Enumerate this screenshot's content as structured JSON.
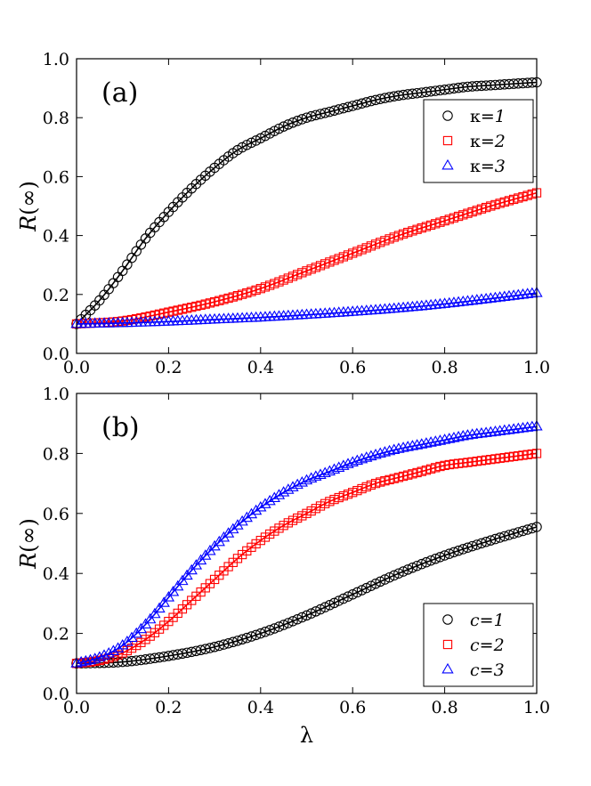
{
  "chart_data": [
    {
      "type": "line",
      "panel_label": "(a)",
      "xlabel": "",
      "ylabel": "R(∞)",
      "xlim": [
        0,
        1
      ],
      "ylim": [
        0,
        1
      ],
      "xticks": [
        "0.0",
        "0.2",
        "0.4",
        "0.6",
        "0.8",
        "1.0"
      ],
      "yticks": [
        "0.0",
        "0.2",
        "0.4",
        "0.6",
        "0.8",
        "1.0"
      ],
      "legend": "upper-right",
      "series": [
        {
          "name": "κ=1",
          "prefix": "κ=",
          "num": "1",
          "marker": "circle",
          "color": "#000000",
          "points": [
            [
              0,
              0.1
            ],
            [
              0.05,
              0.18
            ],
            [
              0.1,
              0.28
            ],
            [
              0.15,
              0.39
            ],
            [
              0.2,
              0.48
            ],
            [
              0.25,
              0.56
            ],
            [
              0.3,
              0.63
            ],
            [
              0.35,
              0.69
            ],
            [
              0.4,
              0.73
            ],
            [
              0.45,
              0.77
            ],
            [
              0.5,
              0.8
            ],
            [
              0.55,
              0.82
            ],
            [
              0.6,
              0.84
            ],
            [
              0.65,
              0.86
            ],
            [
              0.7,
              0.875
            ],
            [
              0.75,
              0.885
            ],
            [
              0.8,
              0.895
            ],
            [
              0.85,
              0.905
            ],
            [
              0.9,
              0.91
            ],
            [
              0.95,
              0.915
            ],
            [
              1.0,
              0.92
            ]
          ]
        },
        {
          "name": "κ=2",
          "prefix": "κ=",
          "num": "2",
          "marker": "square",
          "color": "#ff0000",
          "points": [
            [
              0,
              0.1
            ],
            [
              0.1,
              0.11
            ],
            [
              0.2,
              0.14
            ],
            [
              0.3,
              0.175
            ],
            [
              0.4,
              0.22
            ],
            [
              0.5,
              0.28
            ],
            [
              0.6,
              0.34
            ],
            [
              0.7,
              0.4
            ],
            [
              0.8,
              0.45
            ],
            [
              0.9,
              0.5
            ],
            [
              1.0,
              0.545
            ]
          ]
        },
        {
          "name": "κ=3",
          "prefix": "κ=",
          "num": "3",
          "marker": "triangle",
          "color": "#0000ff",
          "points": [
            [
              0,
              0.1
            ],
            [
              0.1,
              0.103
            ],
            [
              0.2,
              0.108
            ],
            [
              0.3,
              0.115
            ],
            [
              0.4,
              0.122
            ],
            [
              0.5,
              0.131
            ],
            [
              0.6,
              0.141
            ],
            [
              0.7,
              0.153
            ],
            [
              0.8,
              0.168
            ],
            [
              0.9,
              0.186
            ],
            [
              1.0,
              0.205
            ]
          ]
        }
      ]
    },
    {
      "type": "line",
      "panel_label": "(b)",
      "xlabel": "λ",
      "ylabel": "R(∞)",
      "xlim": [
        0,
        1
      ],
      "ylim": [
        0,
        1
      ],
      "xticks": [
        "0.0",
        "0.2",
        "0.4",
        "0.6",
        "0.8",
        "1.0"
      ],
      "yticks": [
        "0.0",
        "0.2",
        "0.4",
        "0.6",
        "0.8",
        "1.0"
      ],
      "legend": "lower-right",
      "series": [
        {
          "name": "c=1",
          "prefix": "c=",
          "num": "1",
          "marker": "circle",
          "color": "#000000",
          "points": [
            [
              0,
              0.1
            ],
            [
              0.1,
              0.105
            ],
            [
              0.2,
              0.125
            ],
            [
              0.3,
              0.155
            ],
            [
              0.4,
              0.2
            ],
            [
              0.5,
              0.26
            ],
            [
              0.6,
              0.33
            ],
            [
              0.7,
              0.4
            ],
            [
              0.8,
              0.46
            ],
            [
              0.9,
              0.51
            ],
            [
              1.0,
              0.555
            ]
          ]
        },
        {
          "name": "c=2",
          "prefix": "c=",
          "num": "2",
          "marker": "square",
          "color": "#ff0000",
          "points": [
            [
              0,
              0.1
            ],
            [
              0.05,
              0.11
            ],
            [
              0.1,
              0.135
            ],
            [
              0.15,
              0.18
            ],
            [
              0.2,
              0.24
            ],
            [
              0.25,
              0.31
            ],
            [
              0.3,
              0.38
            ],
            [
              0.35,
              0.45
            ],
            [
              0.4,
              0.51
            ],
            [
              0.45,
              0.56
            ],
            [
              0.5,
              0.6
            ],
            [
              0.55,
              0.64
            ],
            [
              0.6,
              0.67
            ],
            [
              0.65,
              0.7
            ],
            [
              0.7,
              0.72
            ],
            [
              0.75,
              0.74
            ],
            [
              0.8,
              0.76
            ],
            [
              0.85,
              0.77
            ],
            [
              0.9,
              0.78
            ],
            [
              0.95,
              0.79
            ],
            [
              1.0,
              0.8
            ]
          ]
        },
        {
          "name": "c=3",
          "prefix": "c=",
          "num": "3",
          "marker": "triangle",
          "color": "#0000ff",
          "points": [
            [
              0,
              0.1
            ],
            [
              0.05,
              0.12
            ],
            [
              0.1,
              0.16
            ],
            [
              0.15,
              0.23
            ],
            [
              0.2,
              0.32
            ],
            [
              0.25,
              0.41
            ],
            [
              0.3,
              0.49
            ],
            [
              0.35,
              0.56
            ],
            [
              0.4,
              0.62
            ],
            [
              0.45,
              0.67
            ],
            [
              0.5,
              0.71
            ],
            [
              0.55,
              0.74
            ],
            [
              0.6,
              0.77
            ],
            [
              0.65,
              0.795
            ],
            [
              0.7,
              0.815
            ],
            [
              0.75,
              0.83
            ],
            [
              0.8,
              0.845
            ],
            [
              0.85,
              0.86
            ],
            [
              0.9,
              0.87
            ],
            [
              0.95,
              0.88
            ],
            [
              1.0,
              0.89
            ]
          ]
        }
      ]
    }
  ]
}
